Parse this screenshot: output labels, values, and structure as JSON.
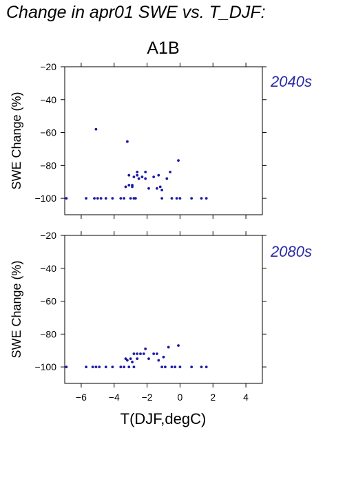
{
  "page_title": "Change in apr01 SWE vs. T_DJF:",
  "colors": {
    "points": "#1a1aa6",
    "period_label": "#2a2aa8",
    "axes": "#000000"
  },
  "chart_data": [
    {
      "type": "scatter",
      "title": "A1B",
      "period_label": "2040s",
      "xlabel": "T(DJF,degC)",
      "ylabel": "SWE Change (%)",
      "xlim": [
        -7,
        5
      ],
      "ylim": [
        -110,
        -20
      ],
      "xticks": [
        -6,
        -4,
        -2,
        0,
        2,
        4
      ],
      "xtick_labels": [
        "−6",
        "−4",
        "−2",
        "0",
        "2",
        "4"
      ],
      "yticks": [
        -20,
        -40,
        -60,
        -80,
        -100
      ],
      "ytick_labels": [
        "−20",
        "−40",
        "−60",
        "−80",
        "−100"
      ],
      "grid": false,
      "points": [
        {
          "x": -6.9,
          "y": -100
        },
        {
          "x": -5.7,
          "y": -100
        },
        {
          "x": -5.2,
          "y": -100
        },
        {
          "x": -5.1,
          "y": -58
        },
        {
          "x": -5.0,
          "y": -100
        },
        {
          "x": -4.8,
          "y": -100
        },
        {
          "x": -4.5,
          "y": -100
        },
        {
          "x": -4.1,
          "y": -100
        },
        {
          "x": -3.6,
          "y": -100
        },
        {
          "x": -3.4,
          "y": -100
        },
        {
          "x": -3.3,
          "y": -93
        },
        {
          "x": -3.2,
          "y": -65.5
        },
        {
          "x": -3.1,
          "y": -86
        },
        {
          "x": -3.1,
          "y": -92
        },
        {
          "x": -3.0,
          "y": -100
        },
        {
          "x": -2.9,
          "y": -92
        },
        {
          "x": -2.9,
          "y": -93
        },
        {
          "x": -2.8,
          "y": -87
        },
        {
          "x": -2.8,
          "y": -100
        },
        {
          "x": -2.7,
          "y": -100
        },
        {
          "x": -2.6,
          "y": -84
        },
        {
          "x": -2.6,
          "y": -86
        },
        {
          "x": -2.5,
          "y": -88
        },
        {
          "x": -2.3,
          "y": -87
        },
        {
          "x": -2.1,
          "y": -84
        },
        {
          "x": -2.1,
          "y": -88
        },
        {
          "x": -1.9,
          "y": -94
        },
        {
          "x": -1.6,
          "y": -87
        },
        {
          "x": -1.4,
          "y": -94
        },
        {
          "x": -1.3,
          "y": -86
        },
        {
          "x": -1.2,
          "y": -93
        },
        {
          "x": -1.1,
          "y": -95
        },
        {
          "x": -1.1,
          "y": -100
        },
        {
          "x": -0.8,
          "y": -88
        },
        {
          "x": -0.6,
          "y": -84
        },
        {
          "x": -0.5,
          "y": -100
        },
        {
          "x": -0.2,
          "y": -100
        },
        {
          "x": -0.1,
          "y": -77
        },
        {
          "x": 0.0,
          "y": -100
        },
        {
          "x": 0.7,
          "y": -100
        },
        {
          "x": 1.3,
          "y": -100
        },
        {
          "x": 1.6,
          "y": -100
        }
      ]
    },
    {
      "type": "scatter",
      "title": "",
      "period_label": "2080s",
      "xlabel": "T(DJF,degC)",
      "ylabel": "SWE Change (%)",
      "xlim": [
        -7,
        5
      ],
      "ylim": [
        -110,
        -20
      ],
      "xticks": [
        -6,
        -4,
        -2,
        0,
        2,
        4
      ],
      "xtick_labels": [
        "−6",
        "−4",
        "−2",
        "0",
        "2",
        "4"
      ],
      "yticks": [
        -20,
        -40,
        -60,
        -80,
        -100
      ],
      "ytick_labels": [
        "−20",
        "−40",
        "−60",
        "−80",
        "−100"
      ],
      "grid": false,
      "points": [
        {
          "x": -6.9,
          "y": -100
        },
        {
          "x": -5.7,
          "y": -100
        },
        {
          "x": -5.3,
          "y": -100
        },
        {
          "x": -5.1,
          "y": -100
        },
        {
          "x": -4.9,
          "y": -100
        },
        {
          "x": -4.5,
          "y": -100
        },
        {
          "x": -4.1,
          "y": -100
        },
        {
          "x": -3.6,
          "y": -100
        },
        {
          "x": -3.4,
          "y": -100
        },
        {
          "x": -3.3,
          "y": -95
        },
        {
          "x": -3.2,
          "y": -96
        },
        {
          "x": -3.1,
          "y": -100
        },
        {
          "x": -3.0,
          "y": -95
        },
        {
          "x": -2.9,
          "y": -97
        },
        {
          "x": -2.8,
          "y": -92
        },
        {
          "x": -2.8,
          "y": -100
        },
        {
          "x": -2.6,
          "y": -95
        },
        {
          "x": -2.6,
          "y": -92
        },
        {
          "x": -2.4,
          "y": -92
        },
        {
          "x": -2.2,
          "y": -92
        },
        {
          "x": -2.1,
          "y": -89
        },
        {
          "x": -1.9,
          "y": -95
        },
        {
          "x": -1.6,
          "y": -92
        },
        {
          "x": -1.4,
          "y": -92
        },
        {
          "x": -1.3,
          "y": -96
        },
        {
          "x": -1.1,
          "y": -100
        },
        {
          "x": -1.0,
          "y": -94
        },
        {
          "x": -0.9,
          "y": -100
        },
        {
          "x": -0.7,
          "y": -88
        },
        {
          "x": -0.5,
          "y": -100
        },
        {
          "x": -0.3,
          "y": -100
        },
        {
          "x": -0.1,
          "y": -87
        },
        {
          "x": 0.0,
          "y": -100
        },
        {
          "x": 0.7,
          "y": -100
        },
        {
          "x": 1.3,
          "y": -100
        },
        {
          "x": 1.6,
          "y": -100
        }
      ]
    }
  ]
}
